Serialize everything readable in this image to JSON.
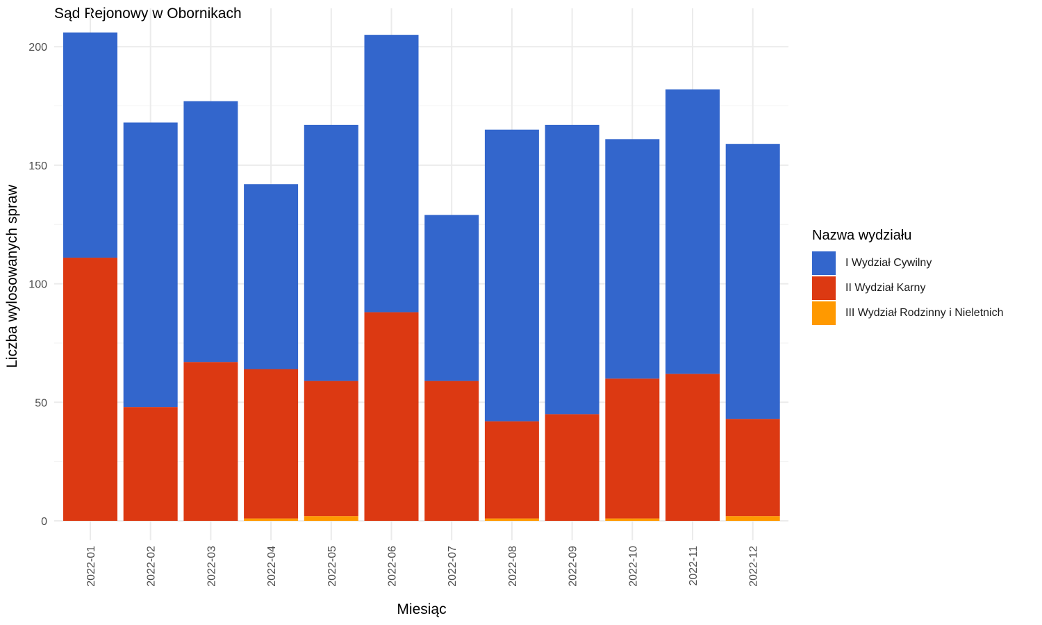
{
  "chart_data": {
    "type": "bar",
    "stacked": true,
    "title": "Sąd Rejonowy w Obornikach",
    "xlabel": "Miesiąc",
    "ylabel": "Liczba wylosowanych spraw",
    "categories": [
      "2022-01",
      "2022-02",
      "2022-03",
      "2022-04",
      "2022-05",
      "2022-06",
      "2022-07",
      "2022-08",
      "2022-09",
      "2022-10",
      "2022-11",
      "2022-12"
    ],
    "series": [
      {
        "name": "III Wydział Rodzinny i Nieletnich",
        "color": "#ff9900",
        "values": [
          0,
          0,
          0,
          1,
          2,
          0,
          0,
          1,
          0,
          1,
          0,
          2
        ]
      },
      {
        "name": "II Wydział Karny",
        "color": "#dc3912",
        "values": [
          111,
          48,
          67,
          63,
          57,
          88,
          59,
          41,
          45,
          59,
          62,
          41
        ]
      },
      {
        "name": "I Wydział Cywilny",
        "color": "#3366cc",
        "values": [
          95,
          120,
          110,
          78,
          108,
          117,
          70,
          123,
          122,
          101,
          120,
          116
        ]
      }
    ],
    "ylim": [
      0,
      210
    ],
    "yticks": [
      0,
      50,
      100,
      150,
      200
    ],
    "grid": true,
    "legend": {
      "title": "Nazwa wydziału",
      "position": "right",
      "order": [
        "I Wydział Cywilny",
        "II Wydział Karny",
        "III Wydział Rodzinny i Nieletnich"
      ]
    }
  }
}
